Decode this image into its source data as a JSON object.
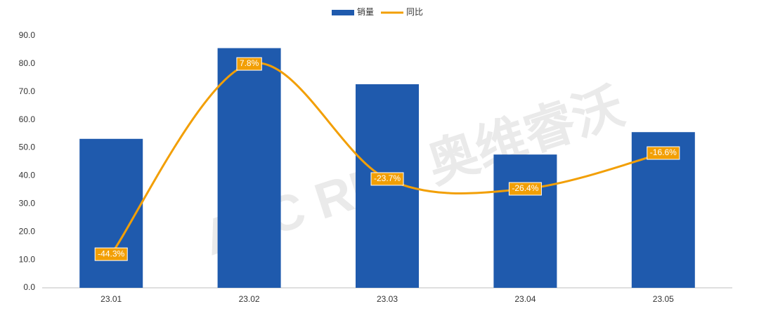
{
  "chart_data": {
    "type": "bar",
    "watermark": "AVC REV 奥维睿沃",
    "categories": [
      "23.01",
      "23.02",
      "23.03",
      "23.04",
      "23.05"
    ],
    "series": [
      {
        "name": "销量",
        "type": "bar",
        "color": "#1f5aad",
        "values": [
          53.2,
          85.6,
          72.7,
          47.6,
          55.6
        ]
      },
      {
        "name": "同比",
        "type": "line",
        "axis": "y2",
        "color": "#f29f05",
        "values": [
          -44.3,
          7.8,
          -23.7,
          -26.4,
          -16.6
        ],
        "value_labels": [
          "-44.3%",
          "7.8%",
          "-23.7%",
          "-26.4%",
          "-16.6%"
        ]
      }
    ],
    "ylim": [
      0,
      90
    ],
    "yticks": [
      {
        "value": 0,
        "label": "0.0"
      },
      {
        "value": 10,
        "label": "10.0"
      },
      {
        "value": 20,
        "label": "20.0"
      },
      {
        "value": 30,
        "label": "30.0"
      },
      {
        "value": 40,
        "label": "40.0"
      },
      {
        "value": 50,
        "label": "50.0"
      },
      {
        "value": 60,
        "label": "60.0"
      },
      {
        "value": 70,
        "label": "70.0"
      },
      {
        "value": 80,
        "label": "80.0"
      },
      {
        "value": 90,
        "label": "90.0"
      }
    ],
    "y2lim": [
      -53.5,
      15.5
    ],
    "legend": "top"
  }
}
